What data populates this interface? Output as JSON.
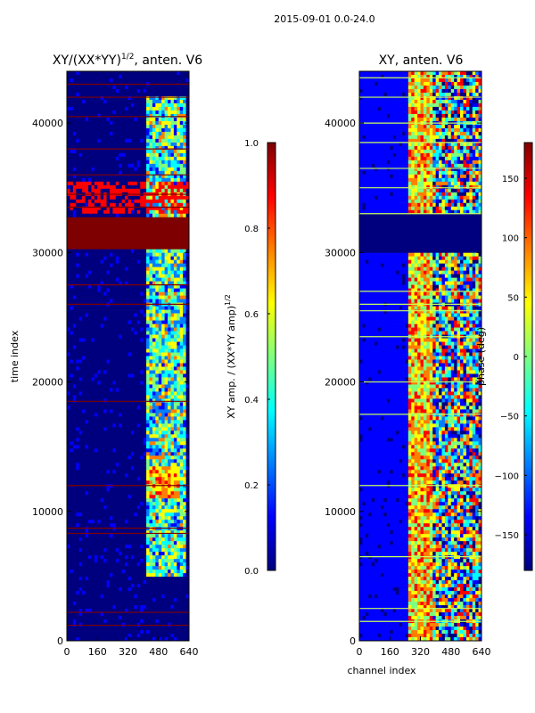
{
  "suptitle": "2015-09-01 0.0-24.0",
  "colors": {
    "jet": [
      "#00007f",
      "#0000ff",
      "#007fff",
      "#00ffff",
      "#7fff7f",
      "#ffff00",
      "#ff7f00",
      "#ff0000",
      "#7f0000"
    ]
  },
  "chart_data": [
    {
      "type": "heatmap",
      "title_text": "XY/(XX*YY)",
      "title_sup": "1/2",
      "title_rest": ", anten. V6",
      "xlabel": "",
      "ylabel": "time index",
      "xlim": [
        0,
        640
      ],
      "ylim": [
        0,
        44000
      ],
      "xticks": [
        0,
        160,
        320,
        480,
        640
      ],
      "yticks": [
        0,
        10000,
        20000,
        30000,
        40000
      ],
      "colorbar": {
        "label_text": "XY amp. / (XX*YY amp)",
        "label_sup": "1/2",
        "min": 0.0,
        "max": 1.0,
        "ticks": [
          0.0,
          0.2,
          0.4,
          0.6,
          0.8,
          1.0
        ],
        "tick_labels": [
          "0.0",
          "0.2",
          "0.4",
          "0.6",
          "0.8",
          "1.0"
        ]
      }
    },
    {
      "type": "heatmap",
      "title_text": "XY, anten. V6",
      "xlabel": "channel index",
      "ylabel": "",
      "xlim": [
        0,
        640
      ],
      "ylim": [
        0,
        44000
      ],
      "xticks": [
        0,
        160,
        320,
        480,
        640
      ],
      "yticks": [
        0,
        10000,
        20000,
        30000,
        40000
      ],
      "colorbar": {
        "label_text": "phase (deg)",
        "min": -180,
        "max": 180,
        "ticks": [
          -150,
          -100,
          -50,
          0,
          50,
          100,
          150
        ],
        "tick_labels": [
          "−150",
          "−100",
          "−50",
          "0",
          "50",
          "100",
          "150"
        ]
      }
    }
  ]
}
